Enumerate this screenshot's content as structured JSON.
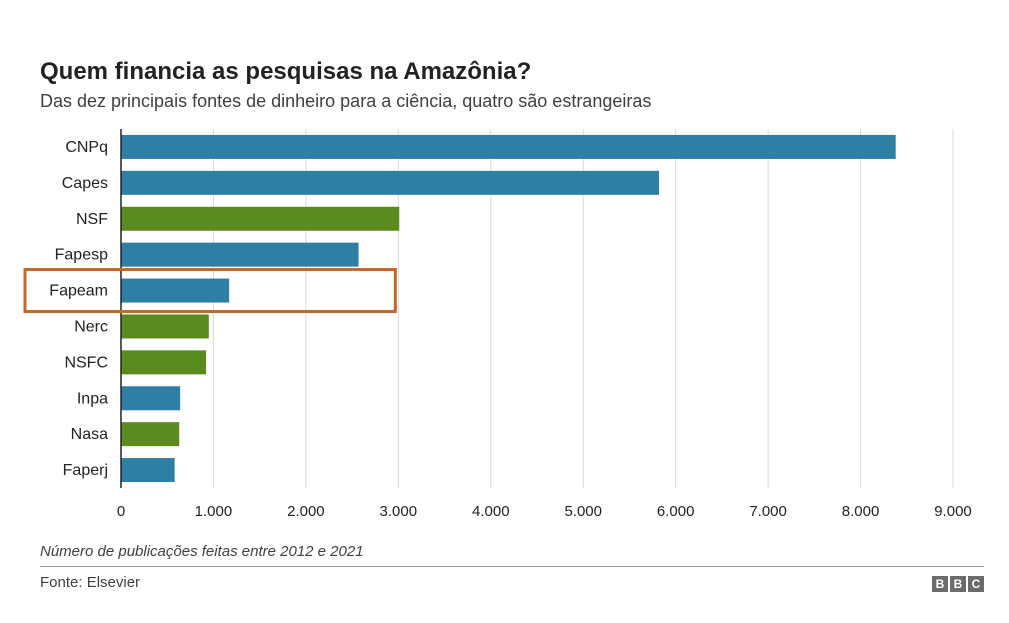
{
  "chart_data": {
    "type": "bar",
    "orientation": "horizontal",
    "title": "Quem financia as pesquisas na Amazônia?",
    "subtitle": "Das dez principais fontes de dinheiro para a ciência, quatro são estrangeiras",
    "categories": [
      "CNPq",
      "Capes",
      "NSF",
      "Fapesp",
      "Fapeam",
      "Nerc",
      "NSFC",
      "Inpa",
      "Nasa",
      "Faperj"
    ],
    "values": [
      8380,
      5820,
      3010,
      2570,
      1170,
      950,
      920,
      640,
      630,
      580
    ],
    "bar_colors": [
      "#2e7fa3",
      "#2e7fa3",
      "#5b8a1e",
      "#2e7fa3",
      "#2e7fa3",
      "#5b8a1e",
      "#5b8a1e",
      "#2e7fa3",
      "#5b8a1e",
      "#2e7fa3"
    ],
    "xlim": [
      0,
      9000
    ],
    "xticks": [
      0,
      1000,
      2000,
      3000,
      4000,
      5000,
      6000,
      7000,
      8000,
      9000
    ],
    "xtick_labels": [
      "0",
      "1.000",
      "2.000",
      "3.000",
      "4.000",
      "5.000",
      "6.000",
      "7.000",
      "8.000",
      "9.000"
    ],
    "xlabel": "Número de publicações feitas entre 2012 e 2021",
    "grid": true,
    "highlighted_category": "Fapeam",
    "highlight_color": "#c0682a"
  },
  "footer": {
    "source": "Fonte: Elsevier",
    "logo_letters": [
      "B",
      "B",
      "C"
    ]
  },
  "colors": {
    "domestic": "#2e7fa3",
    "foreign": "#5b8a1e",
    "grid": "#d9d9d9",
    "axis": "#222222"
  }
}
